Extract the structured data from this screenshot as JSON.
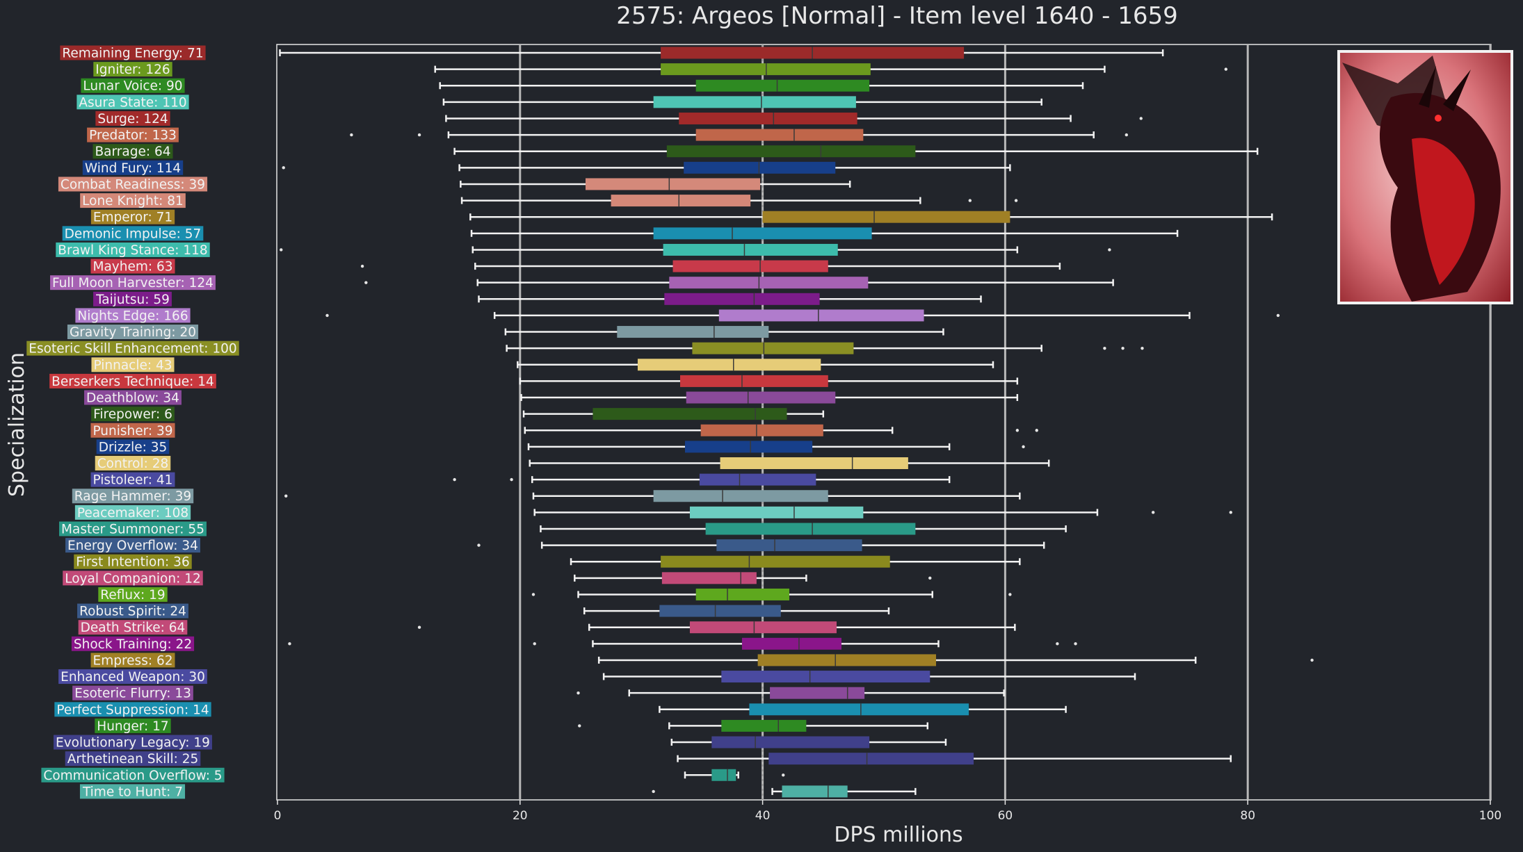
{
  "chart_data": {
    "type": "boxplot",
    "title": "2575: Argeos [Normal] - Item level 1640 - 1659",
    "xlabel": "DPS millions",
    "ylabel": "Specialization",
    "xlim": [
      0,
      102
    ],
    "xticks": [
      0,
      20,
      40,
      60,
      80,
      100
    ],
    "grid": "vertical",
    "median_line": 40,
    "boss_image": "argeos-dragon-portrait",
    "specs": [
      {
        "label": "Remaining Energy: 71",
        "color": "#9b2a2a",
        "wl": 0.2,
        "q1": 31.6,
        "med": 44.1,
        "q3": 56.6,
        "wh": 73.0,
        "outliers": []
      },
      {
        "label": "Igniter: 126",
        "color": "#6b9a1e",
        "wl": 13.0,
        "q1": 31.6,
        "med": 40.3,
        "q3": 48.9,
        "wh": 68.2,
        "outliers": [
          78.2
        ]
      },
      {
        "label": "Lunar Voice: 90",
        "color": "#2e8a22",
        "wl": 13.4,
        "q1": 34.5,
        "med": 41.2,
        "q3": 48.8,
        "wh": 66.4,
        "outliers": []
      },
      {
        "label": "Asura State: 110",
        "color": "#4ec5b4",
        "wl": 13.7,
        "q1": 31.0,
        "med": 39.9,
        "q3": 47.7,
        "wh": 63.0,
        "outliers": []
      },
      {
        "label": "Surge: 124",
        "color": "#a12a2a",
        "wl": 13.9,
        "q1": 33.1,
        "med": 40.9,
        "q3": 47.8,
        "wh": 65.4,
        "outliers": [
          71.2
        ]
      },
      {
        "label": "Predator: 133",
        "color": "#c0664a",
        "wl": 14.1,
        "q1": 34.5,
        "med": 42.6,
        "q3": 48.3,
        "wh": 67.3,
        "outliers": [
          6.1,
          11.7,
          70.0
        ]
      },
      {
        "label": "Barrage: 64",
        "color": "#2d5a1a",
        "wl": 14.6,
        "q1": 32.1,
        "med": 44.8,
        "q3": 52.6,
        "wh": 80.8,
        "outliers": []
      },
      {
        "label": "Wind Fury: 114",
        "color": "#173f8a",
        "wl": 15.0,
        "q1": 33.5,
        "med": 39.7,
        "q3": 46.0,
        "wh": 60.4,
        "outliers": [
          0.5
        ]
      },
      {
        "label": "Combat Readiness: 39",
        "color": "#d4897a",
        "wl": 15.1,
        "q1": 25.4,
        "med": 32.3,
        "q3": 39.8,
        "wh": 47.2,
        "outliers": []
      },
      {
        "label": "Lone Knight: 81",
        "color": "#d48878",
        "wl": 15.2,
        "q1": 27.5,
        "med": 33.1,
        "q3": 39.0,
        "wh": 53.0,
        "outliers": [
          57.1,
          60.9
        ]
      },
      {
        "label": "Emperor: 71",
        "color": "#a08025",
        "wl": 15.9,
        "q1": 40.0,
        "med": 49.2,
        "q3": 60.4,
        "wh": 82.0,
        "outliers": []
      },
      {
        "label": "Demonic Impulse: 57",
        "color": "#1a8fb0",
        "wl": 16.0,
        "q1": 31.0,
        "med": 37.5,
        "q3": 49.0,
        "wh": 74.2,
        "outliers": []
      },
      {
        "label": "Brawl King Stance: 118",
        "color": "#3dbcac",
        "wl": 16.1,
        "q1": 31.8,
        "med": 38.5,
        "q3": 46.2,
        "wh": 61.0,
        "outliers": [
          0.3,
          68.6
        ]
      },
      {
        "label": "Mayhem: 63",
        "color": "#c83a4a",
        "wl": 16.3,
        "q1": 32.6,
        "med": 39.8,
        "q3": 45.4,
        "wh": 64.5,
        "outliers": [
          7.0
        ]
      },
      {
        "label": "Full Moon Harvester: 124",
        "color": "#a662b3",
        "wl": 16.5,
        "q1": 32.3,
        "med": 39.7,
        "q3": 48.7,
        "wh": 68.9,
        "outliers": [
          7.3
        ]
      },
      {
        "label": "Taijutsu: 59",
        "color": "#7c1c8a",
        "wl": 16.6,
        "q1": 31.9,
        "med": 39.3,
        "q3": 44.7,
        "wh": 58.0,
        "outliers": []
      },
      {
        "label": "Nights Edge: 166",
        "color": "#b07ccc",
        "wl": 17.9,
        "q1": 36.4,
        "med": 44.6,
        "q3": 53.3,
        "wh": 75.2,
        "outliers": [
          4.1,
          82.5
        ]
      },
      {
        "label": "Gravity Training: 20",
        "color": "#7d9aa2",
        "wl": 18.8,
        "q1": 28.0,
        "med": 36.0,
        "q3": 40.5,
        "wh": 54.9,
        "outliers": []
      },
      {
        "label": "Esoteric Skill Enhancement: 100",
        "color": "#8a8f24",
        "wl": 18.9,
        "q1": 34.2,
        "med": 40.1,
        "q3": 47.5,
        "wh": 63.0,
        "outliers": [
          68.2,
          69.7,
          71.3
        ]
      },
      {
        "label": "Pinnacle: 43",
        "color": "#e6cc78",
        "wl": 19.8,
        "q1": 29.7,
        "med": 37.6,
        "q3": 44.8,
        "wh": 59.0,
        "outliers": []
      },
      {
        "label": "Berserkers Technique: 14",
        "color": "#c8383e",
        "wl": 20.0,
        "q1": 33.2,
        "med": 38.3,
        "q3": 45.4,
        "wh": 61.0,
        "outliers": []
      },
      {
        "label": "Deathblow: 34",
        "color": "#8a4a9a",
        "wl": 20.1,
        "q1": 33.7,
        "med": 38.8,
        "q3": 46.0,
        "wh": 61.0,
        "outliers": []
      },
      {
        "label": "Firepower: 6",
        "color": "#2d5a1a",
        "wl": 20.3,
        "q1": 26.0,
        "med": 39.4,
        "q3": 42.0,
        "wh": 45.0,
        "outliers": []
      },
      {
        "label": "Punisher: 39",
        "color": "#c0664a",
        "wl": 20.4,
        "q1": 34.9,
        "med": 39.5,
        "q3": 45.0,
        "wh": 50.7,
        "outliers": [
          61.0,
          62.6
        ]
      },
      {
        "label": "Drizzle: 35",
        "color": "#173f8a",
        "wl": 20.7,
        "q1": 33.6,
        "med": 39.0,
        "q3": 44.1,
        "wh": 55.4,
        "outliers": [
          61.5
        ]
      },
      {
        "label": "Control: 28",
        "color": "#e6cc78",
        "wl": 20.8,
        "q1": 36.5,
        "med": 47.4,
        "q3": 52.0,
        "wh": 63.6,
        "outliers": []
      },
      {
        "label": "Pistoleer: 41",
        "color": "#4a4aa0",
        "wl": 21.0,
        "q1": 34.8,
        "med": 38.1,
        "q3": 44.4,
        "wh": 55.4,
        "outliers": [
          14.6,
          19.3
        ]
      },
      {
        "label": "Rage Hammer: 39",
        "color": "#7d9aa2",
        "wl": 21.1,
        "q1": 31.0,
        "med": 36.7,
        "q3": 45.4,
        "wh": 61.2,
        "outliers": [
          0.7
        ]
      },
      {
        "label": "Peacemaker: 108",
        "color": "#6cccc0",
        "wl": 21.2,
        "q1": 34.0,
        "med": 42.6,
        "q3": 48.3,
        "wh": 67.6,
        "outliers": [
          72.2,
          78.6
        ]
      },
      {
        "label": "Master Summoner: 55",
        "color": "#2a9a88",
        "wl": 21.7,
        "q1": 35.3,
        "med": 44.1,
        "q3": 52.6,
        "wh": 65.0,
        "outliers": []
      },
      {
        "label": "Energy Overflow: 34",
        "color": "#3a5a8a",
        "wl": 21.8,
        "q1": 36.2,
        "med": 41.0,
        "q3": 48.2,
        "wh": 63.2,
        "outliers": [
          16.6
        ]
      },
      {
        "label": "First Intention: 36",
        "color": "#8a8a1e",
        "wl": 24.2,
        "q1": 31.6,
        "med": 38.9,
        "q3": 50.5,
        "wh": 61.2,
        "outliers": []
      },
      {
        "label": "Loyal Companion: 12",
        "color": "#c24a78",
        "wl": 24.5,
        "q1": 31.7,
        "med": 38.2,
        "q3": 39.5,
        "wh": 43.6,
        "outliers": [
          53.8
        ]
      },
      {
        "label": "Reflux: 19",
        "color": "#5ea81e",
        "wl": 24.8,
        "q1": 34.5,
        "med": 37.1,
        "q3": 42.2,
        "wh": 54.0,
        "outliers": [
          21.1,
          60.4
        ]
      },
      {
        "label": "Robust Spirit: 24",
        "color": "#3a5a8a",
        "wl": 25.3,
        "q1": 31.5,
        "med": 36.1,
        "q3": 41.5,
        "wh": 50.4,
        "outliers": []
      },
      {
        "label": "Death Strike: 64",
        "color": "#c24a78",
        "wl": 25.7,
        "q1": 34.0,
        "med": 39.3,
        "q3": 46.1,
        "wh": 60.8,
        "outliers": [
          11.7
        ]
      },
      {
        "label": "Shock Training: 22",
        "color": "#8a168a",
        "wl": 26.0,
        "q1": 38.3,
        "med": 43.0,
        "q3": 46.5,
        "wh": 54.5,
        "outliers": [
          1.0,
          21.2,
          64.3,
          65.8
        ]
      },
      {
        "label": "Empress: 62",
        "color": "#a08025",
        "wl": 26.5,
        "q1": 39.6,
        "med": 46.0,
        "q3": 54.3,
        "wh": 75.7,
        "outliers": [
          85.3
        ]
      },
      {
        "label": "Enhanced Weapon: 30",
        "color": "#4a4aa0",
        "wl": 26.9,
        "q1": 36.6,
        "med": 43.9,
        "q3": 53.8,
        "wh": 70.7,
        "outliers": []
      },
      {
        "label": "Esoteric Flurry: 13",
        "color": "#8a4a9a",
        "wl": 29.0,
        "q1": 40.6,
        "med": 47.0,
        "q3": 48.4,
        "wh": 59.9,
        "outliers": [
          24.8
        ]
      },
      {
        "label": "Perfect Suppression: 14",
        "color": "#1a8fb0",
        "wl": 31.5,
        "q1": 38.9,
        "med": 48.1,
        "q3": 57.0,
        "wh": 65.0,
        "outliers": []
      },
      {
        "label": "Hunger: 17",
        "color": "#2e8a22",
        "wl": 32.3,
        "q1": 36.6,
        "med": 41.3,
        "q3": 43.6,
        "wh": 53.6,
        "outliers": [
          24.9
        ]
      },
      {
        "label": "Evolutionary Legacy: 19",
        "color": "#40408a",
        "wl": 32.5,
        "q1": 35.8,
        "med": 39.4,
        "q3": 48.8,
        "wh": 55.1,
        "outliers": []
      },
      {
        "label": "Arthetinean Skill: 25",
        "color": "#40408a",
        "wl": 33.0,
        "q1": 40.5,
        "med": 48.6,
        "q3": 57.4,
        "wh": 78.6,
        "outliers": []
      },
      {
        "label": "Communication Overflow: 5",
        "color": "#2a9a88",
        "wl": 33.6,
        "q1": 35.8,
        "med": 37.1,
        "q3": 37.8,
        "wh": 38.0,
        "outliers": [
          41.7
        ]
      },
      {
        "label": "Time to Hunt: 7",
        "color": "#4eb0a4",
        "wl": 40.8,
        "q1": 41.6,
        "med": 45.4,
        "q3": 47.0,
        "wh": 52.6,
        "outliers": [
          31.0
        ]
      }
    ]
  }
}
